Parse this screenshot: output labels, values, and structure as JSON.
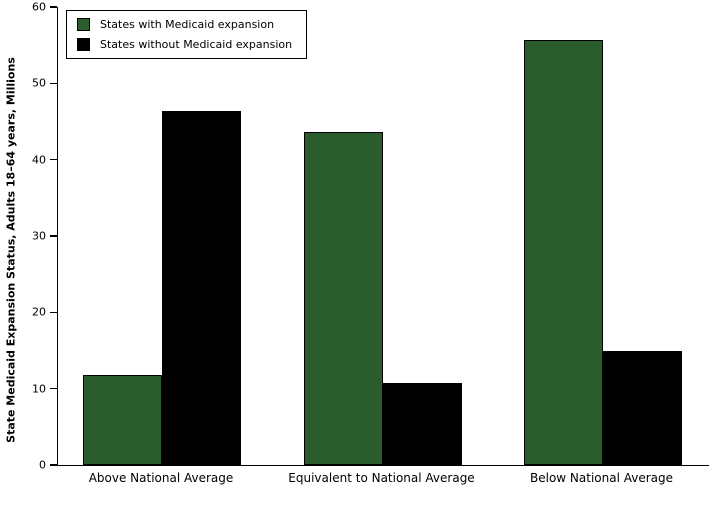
{
  "chart_data": {
    "type": "bar",
    "categories": [
      "Above National Average",
      "Equivalent to National Average",
      "Below National Average"
    ],
    "series": [
      {
        "name": "States with Medicaid expansion",
        "color": "#2b5c2d",
        "values": [
          11.8,
          43.6,
          55.7
        ]
      },
      {
        "name": "States without Medicaid expansion",
        "color": "#000000",
        "values": [
          46.4,
          10.7,
          15.0
        ]
      }
    ],
    "title": "",
    "xlabel": "",
    "ylabel": "State Medicaid Expansion Status, Adults 18–64 years, Millions",
    "ylim": [
      0,
      60
    ],
    "yticks": [
      0,
      10,
      20,
      30,
      40,
      50,
      60
    ],
    "grid": false,
    "legend_position": "top-left"
  }
}
